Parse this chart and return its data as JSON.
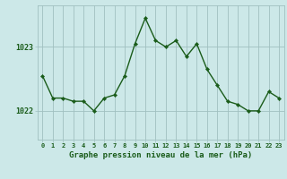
{
  "hours": [
    0,
    1,
    2,
    3,
    4,
    5,
    6,
    7,
    8,
    9,
    10,
    11,
    12,
    13,
    14,
    15,
    16,
    17,
    18,
    19,
    20,
    21,
    22,
    23
  ],
  "pressure": [
    1022.55,
    1022.2,
    1022.2,
    1022.15,
    1022.15,
    1022.0,
    1022.2,
    1022.25,
    1022.55,
    1023.05,
    1023.45,
    1023.1,
    1023.0,
    1023.1,
    1022.85,
    1023.05,
    1022.65,
    1022.4,
    1022.15,
    1022.1,
    1022.0,
    1022.0,
    1022.3,
    1022.2
  ],
  "line_color": "#1a5c1a",
  "marker_color": "#1a5c1a",
  "bg_color": "#cce8e8",
  "grid_color": "#a0c0c0",
  "xlabel": "Graphe pression niveau de la mer (hPa)",
  "xlabel_color": "#1a5c1a",
  "tick_label_color": "#1a5c1a",
  "ytick_labels": [
    "1022",
    "1023"
  ],
  "ytick_values": [
    1022,
    1023
  ],
  "ylim": [
    1021.55,
    1023.65
  ],
  "xlim": [
    -0.5,
    23.5
  ],
  "xtick_values": [
    0,
    1,
    2,
    3,
    4,
    5,
    6,
    7,
    8,
    9,
    10,
    11,
    12,
    13,
    14,
    15,
    16,
    17,
    18,
    19,
    20,
    21,
    22,
    23
  ],
  "xtick_labels": [
    "0",
    "1",
    "2",
    "3",
    "4",
    "5",
    "6",
    "7",
    "8",
    "9",
    "10",
    "11",
    "12",
    "13",
    "14",
    "15",
    "16",
    "17",
    "18",
    "19",
    "20",
    "21",
    "22",
    "23"
  ]
}
